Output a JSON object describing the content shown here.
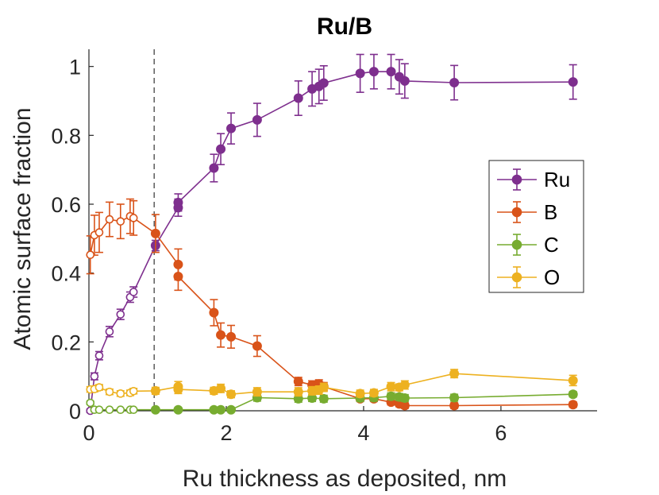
{
  "chart_data": {
    "type": "scatter",
    "title": "Ru/B",
    "xlabel": "Ru thickness as deposited, nm",
    "ylabel": "Atomic surface fraction",
    "xlim": [
      0,
      7.4
    ],
    "ylim": [
      0,
      1.05
    ],
    "xticks": [
      0,
      2,
      4,
      6
    ],
    "yticks": [
      0,
      0.2,
      0.4,
      0.6,
      0.8,
      1
    ],
    "xtick_labels": [
      "0",
      "2",
      "4",
      "6"
    ],
    "ytick_labels": [
      "0",
      "0.2",
      "0.4",
      "0.6",
      "0.8",
      "1"
    ],
    "vline_x": 0.95,
    "legend_position": "right",
    "legend": [
      "Ru",
      "B",
      "C",
      "O"
    ],
    "series": [
      {
        "name": "Ru",
        "color": "#7E2F8E",
        "hollow_x": [
          0.02,
          0.08,
          0.15,
          0.3,
          0.46,
          0.6,
          0.65
        ],
        "hollow_y": [
          0.0,
          0.1,
          0.16,
          0.23,
          0.28,
          0.33,
          0.345
        ],
        "hollow_err": [
          0.005,
          0.01,
          0.012,
          0.015,
          0.015,
          0.015,
          0.015
        ],
        "filled_x": [
          0.97,
          1.3,
          1.3,
          1.82,
          1.92,
          2.07,
          2.45,
          3.05,
          3.25,
          3.35,
          3.42,
          3.95,
          4.15,
          4.4,
          4.52,
          4.6,
          5.32,
          7.05
        ],
        "filled_y": [
          0.48,
          0.59,
          0.605,
          0.705,
          0.76,
          0.82,
          0.845,
          0.908,
          0.935,
          0.942,
          0.952,
          0.98,
          0.985,
          0.985,
          0.97,
          0.958,
          0.953,
          0.955
        ],
        "filled_err": [
          0.015,
          0.025,
          0.025,
          0.04,
          0.045,
          0.045,
          0.048,
          0.05,
          0.05,
          0.05,
          0.05,
          0.055,
          0.05,
          0.05,
          0.05,
          0.05,
          0.05,
          0.05
        ]
      },
      {
        "name": "B",
        "color": "#D95319",
        "hollow_x": [
          0.02,
          0.08,
          0.15,
          0.3,
          0.46,
          0.6,
          0.65
        ],
        "hollow_y": [
          0.453,
          0.51,
          0.518,
          0.556,
          0.55,
          0.565,
          0.56
        ],
        "hollow_err": [
          0.055,
          0.058,
          0.058,
          0.05,
          0.05,
          0.05,
          0.05
        ],
        "filled_x": [
          0.97,
          1.3,
          1.3,
          1.82,
          1.92,
          2.07,
          2.45,
          3.05,
          3.25,
          3.35,
          3.42,
          3.95,
          4.15,
          4.4,
          4.52,
          4.6,
          5.32,
          7.05
        ],
        "filled_y": [
          0.515,
          0.425,
          0.39,
          0.285,
          0.22,
          0.215,
          0.188,
          0.085,
          0.075,
          0.078,
          0.07,
          0.035,
          0.035,
          0.025,
          0.02,
          0.015,
          0.015,
          0.018
        ],
        "filled_err": [
          0.055,
          0.045,
          0.04,
          0.038,
          0.035,
          0.033,
          0.03,
          0.012,
          0.012,
          0.012,
          0.012,
          0.008,
          0.008,
          0.008,
          0.008,
          0.008,
          0.008,
          0.008
        ]
      },
      {
        "name": "C",
        "color": "#77AC30",
        "hollow_x": [
          0.02,
          0.08,
          0.15,
          0.3,
          0.46,
          0.6,
          0.65
        ],
        "hollow_y": [
          0.023,
          0.003,
          0.003,
          0.003,
          0.003,
          0.003,
          0.003
        ],
        "hollow_err": [
          0.005,
          0.003,
          0.003,
          0.003,
          0.003,
          0.003,
          0.003
        ],
        "filled_x": [
          0.97,
          1.3,
          1.82,
          1.92,
          2.07,
          2.45,
          3.05,
          3.25,
          3.42,
          3.95,
          4.15,
          4.4,
          4.52,
          4.6,
          5.32,
          7.05
        ],
        "filled_y": [
          0.003,
          0.003,
          0.003,
          0.003,
          0.003,
          0.038,
          0.035,
          0.037,
          0.035,
          0.037,
          0.038,
          0.042,
          0.04,
          0.037,
          0.038,
          0.048
        ],
        "filled_err": [
          0.003,
          0.003,
          0.003,
          0.003,
          0.003,
          0.01,
          0.01,
          0.01,
          0.01,
          0.01,
          0.01,
          0.01,
          0.01,
          0.01,
          0.01,
          0.008
        ]
      },
      {
        "name": "O",
        "color": "#EDB120",
        "hollow_x": [
          0.02,
          0.08,
          0.15,
          0.3,
          0.46,
          0.6,
          0.65
        ],
        "hollow_y": [
          0.062,
          0.063,
          0.068,
          0.055,
          0.05,
          0.052,
          0.057
        ],
        "hollow_err": [
          0.008,
          0.008,
          0.008,
          0.008,
          0.008,
          0.008,
          0.008
        ],
        "filled_x": [
          0.97,
          1.3,
          1.3,
          1.82,
          1.92,
          2.07,
          2.45,
          3.05,
          3.25,
          3.35,
          3.42,
          3.95,
          4.15,
          4.4,
          4.52,
          4.6,
          5.32,
          7.05
        ],
        "filled_y": [
          0.058,
          0.07,
          0.062,
          0.058,
          0.065,
          0.048,
          0.055,
          0.055,
          0.058,
          0.06,
          0.068,
          0.05,
          0.052,
          0.07,
          0.068,
          0.075,
          0.108,
          0.088
        ],
        "filled_err": [
          0.01,
          0.015,
          0.012,
          0.01,
          0.012,
          0.01,
          0.012,
          0.012,
          0.012,
          0.012,
          0.012,
          0.01,
          0.01,
          0.012,
          0.01,
          0.012,
          0.012,
          0.015
        ]
      }
    ]
  }
}
